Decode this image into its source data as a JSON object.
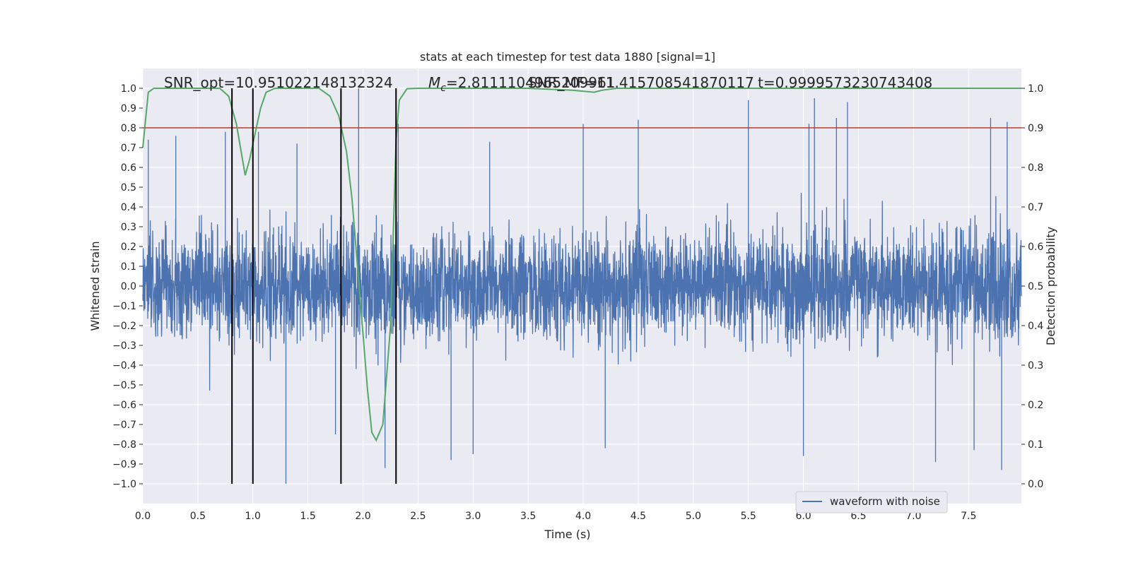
{
  "chart_data": {
    "type": "line",
    "title": "stats at each timestep for test data 1880 [signal=1]",
    "xlabel": "Time (s)",
    "ylabel": "Whitened strain",
    "y2label": "Detection probability",
    "xlim": [
      0.0,
      7.98
    ],
    "ylim": [
      -1.1,
      1.1
    ],
    "y2lim": [
      -0.05,
      1.05
    ],
    "x_ticks": [
      "0.0",
      "0.5",
      "1.0",
      "1.5",
      "2.0",
      "2.5",
      "3.0",
      "3.5",
      "4.0",
      "4.5",
      "5.0",
      "5.5",
      "6.0",
      "6.5",
      "7.0",
      "7.5"
    ],
    "y_ticks": [
      "1.0",
      "0.9",
      "0.8",
      "0.7",
      "0.6",
      "0.5",
      "0.4",
      "0.3",
      "0.2",
      "0.1",
      "0.0",
      "−0.1",
      "−0.2",
      "−0.3",
      "−0.4",
      "−0.5",
      "−0.6",
      "−0.7",
      "−0.8",
      "−0.9",
      "−1.0"
    ],
    "y2_ticks": [
      "1.0",
      "0.9",
      "0.8",
      "0.7",
      "0.6",
      "0.5",
      "0.4",
      "0.3",
      "0.2",
      "0.1",
      "0.0"
    ],
    "grid": true,
    "annotations": {
      "snr": "SNR_opt=10.951022148132324",
      "mc": "=2.8111104965209961",
      "mc_symbol": "M",
      "mc_sub": "c",
      "snr_mf": "SNR_MF=11.415708541870117",
      "t": "t=0.9999573230743408"
    },
    "threshold": {
      "value": 0.9,
      "color": "#c0392b"
    },
    "vertical_lines": [
      0.81,
      1.0,
      1.8,
      2.3
    ],
    "series": [
      {
        "name": "waveform with noise",
        "color": "#4c72b0",
        "sample_rate": 1024,
        "envelope": [
          [
            0.0,
            0.32
          ],
          [
            0.5,
            0.33
          ],
          [
            1.0,
            0.33
          ],
          [
            1.5,
            0.34
          ],
          [
            2.0,
            0.34
          ],
          [
            2.5,
            0.33
          ],
          [
            3.0,
            0.33
          ],
          [
            4.0,
            0.33
          ],
          [
            5.0,
            0.34
          ],
          [
            6.0,
            0.35
          ],
          [
            7.0,
            0.35
          ],
          [
            7.98,
            0.36
          ]
        ],
        "peaks": [
          [
            0.05,
            0.74
          ],
          [
            0.3,
            0.76
          ],
          [
            0.75,
            0.78
          ],
          [
            1.05,
            0.78
          ],
          [
            1.3,
            -1.0
          ],
          [
            1.4,
            0.72
          ],
          [
            1.75,
            -0.75
          ],
          [
            1.96,
            1.0
          ],
          [
            2.2,
            -0.92
          ],
          [
            2.32,
            0.82
          ],
          [
            2.8,
            -0.88
          ],
          [
            3.0,
            -0.85
          ],
          [
            3.15,
            0.73
          ],
          [
            4.0,
            0.82
          ],
          [
            4.2,
            -0.82
          ],
          [
            4.5,
            0.84
          ],
          [
            5.5,
            0.94
          ],
          [
            6.1,
            0.95
          ],
          [
            6.05,
            0.82
          ],
          [
            6.0,
            -0.86
          ],
          [
            6.3,
            0.85
          ],
          [
            6.4,
            0.93
          ],
          [
            7.2,
            -0.89
          ],
          [
            7.55,
            -0.83
          ],
          [
            7.7,
            0.85
          ],
          [
            7.8,
            -0.93
          ],
          [
            7.85,
            0.83
          ]
        ]
      },
      {
        "name": "detection probability",
        "color": "#55a868",
        "axis": "right",
        "x": [
          0.0,
          0.05,
          0.1,
          0.2,
          0.4,
          0.6,
          0.7,
          0.78,
          0.85,
          0.93,
          0.97,
          1.0,
          1.07,
          1.12,
          1.2,
          1.35,
          1.5,
          1.6,
          1.7,
          1.78,
          1.85,
          1.9,
          1.95,
          2.0,
          2.04,
          2.08,
          2.12,
          2.18,
          2.25,
          2.3,
          2.33,
          2.4,
          2.5,
          2.7,
          3.0,
          3.5,
          3.9,
          4.1,
          4.17,
          4.3,
          4.6,
          5.0,
          6.0,
          7.0,
          7.98
        ],
        "y": [
          0.85,
          0.99,
          1.0,
          1.0,
          1.0,
          1.0,
          1.0,
          0.98,
          0.91,
          0.78,
          0.82,
          0.86,
          0.95,
          0.99,
          1.0,
          1.0,
          1.0,
          1.0,
          0.98,
          0.93,
          0.84,
          0.72,
          0.55,
          0.38,
          0.24,
          0.13,
          0.11,
          0.15,
          0.4,
          0.87,
          0.97,
          0.999,
          1.0,
          1.0,
          1.0,
          1.0,
          0.995,
          0.99,
          0.995,
          1.0,
          1.0,
          1.0,
          1.0,
          1.0,
          1.0
        ]
      }
    ],
    "legend": {
      "position": "lower-right",
      "label": "waveform with noise"
    }
  }
}
